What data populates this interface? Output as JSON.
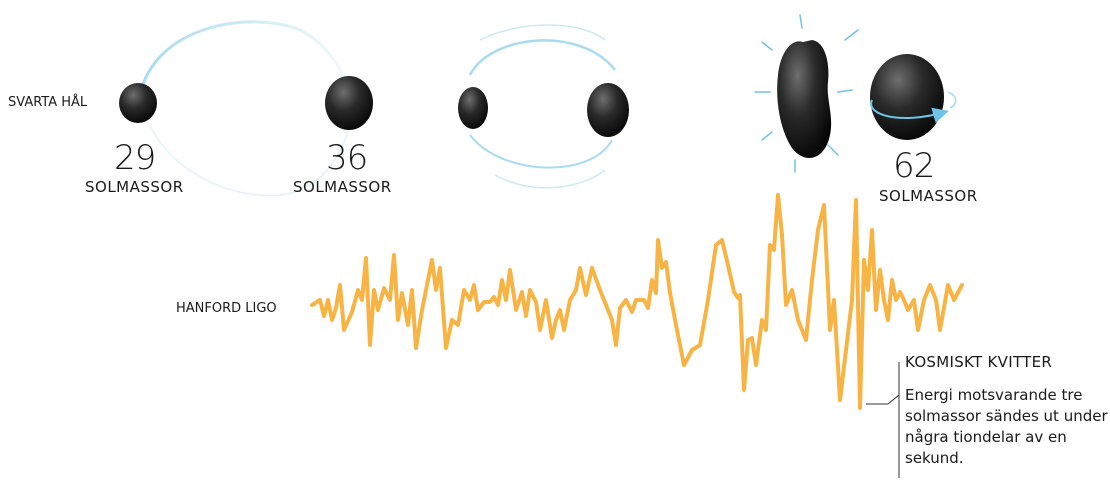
{
  "labels": {
    "black_holes": "SVARTA HÅL",
    "detector": "HANFORD LIGO"
  },
  "masses": {
    "left": "29",
    "right": "36",
    "merged": "62",
    "unit": "SOLMASSOR"
  },
  "callout": {
    "title": "KOSMISKT KVITTER",
    "body": "Energi motsvarande tre solmassor sändes ut under några tiondelar av en sekund."
  },
  "colors": {
    "orbit": "#a9dcef",
    "signal": "#f7b444",
    "black_hole": "#0d0d0d"
  }
}
